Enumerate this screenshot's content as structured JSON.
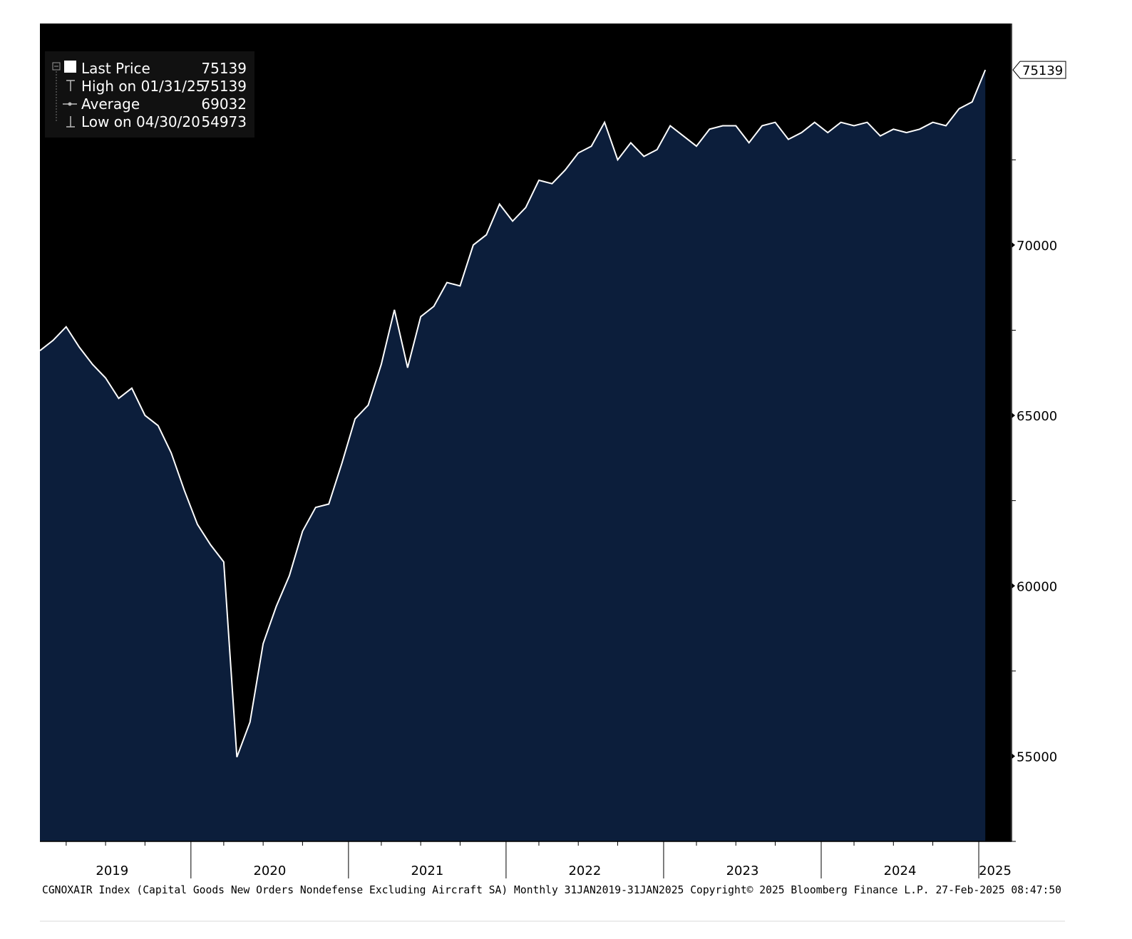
{
  "chart_data": {
    "type": "area",
    "x_start": "2019-01-31",
    "frequency": "monthly",
    "values": [
      66900,
      67200,
      67600,
      67000,
      66500,
      66100,
      65500,
      65800,
      65000,
      64700,
      63900,
      62800,
      61800,
      61200,
      60700,
      54973,
      56000,
      58300,
      59400,
      60300,
      61600,
      62300,
      62400,
      63600,
      64900,
      65300,
      66500,
      68100,
      66400,
      67900,
      68200,
      68900,
      68800,
      70000,
      70300,
      71200,
      70700,
      71100,
      71900,
      71800,
      72200,
      72700,
      72900,
      73600,
      72500,
      73000,
      72600,
      72800,
      73500,
      73200,
      72900,
      73400,
      73500,
      73500,
      73000,
      73500,
      73600,
      73100,
      73300,
      73600,
      73300,
      73600,
      73500,
      73600,
      73200,
      73400,
      73300,
      73400,
      73600,
      73500,
      74000,
      74200,
      75139
    ],
    "ylim": [
      52500,
      76500
    ],
    "y_ticks": [
      55000,
      60000,
      65000,
      70000
    ],
    "y_tick_labels": [
      "55000",
      "60000",
      "65000",
      "70000"
    ],
    "x_labels": [
      "2019",
      "2020",
      "2021",
      "2022",
      "2023",
      "2024",
      "2025"
    ],
    "last_value_label": "75139",
    "legend": {
      "placement": "top-left",
      "entries": [
        {
          "label": "Last Price",
          "value": "75139",
          "icon": "square-icon"
        },
        {
          "label": "High on 01/31/25",
          "value": "75139",
          "icon": "high-marker-icon"
        },
        {
          "label": "Average",
          "value": "69032",
          "icon": "average-marker-icon"
        },
        {
          "label": "Low on 04/30/20",
          "value": "54973",
          "icon": "low-marker-icon"
        }
      ]
    },
    "footer": "CGNOXAIR Index (Capital Goods New Orders Nondefense Excluding Aircraft SA)  Monthly 31JAN2019-31JAN2025 Copyright© 2025 Bloomberg Finance L.P. 27-Feb-2025 08:47:50",
    "colors": {
      "plot_background": "#000000",
      "area_fill": "#0c1e3b",
      "line": "#ffffff",
      "axis_panel": "#ffffff",
      "legend_background": "#111111"
    }
  }
}
